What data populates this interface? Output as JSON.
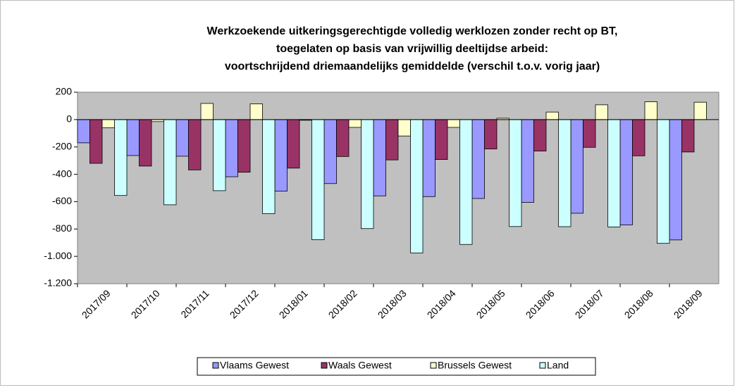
{
  "chart_data": {
    "type": "bar",
    "title": [
      "Werkzoekende uitkeringsgerechtigde volledig werklozen zonder recht op BT,",
      "toegelaten op basis van vrijwillig deeltijdse arbeid:",
      "voortschrijdend driemaandelijks gemiddelde (verschil t.o.v. vorig jaar)"
    ],
    "categories": [
      "2017/09",
      "2017/10",
      "2017/11",
      "2017/12",
      "2018/01",
      "2018/02",
      "2018/03",
      "2018/04",
      "2018/05",
      "2018/06",
      "2018/07",
      "2018/08",
      "2018/09"
    ],
    "series": [
      {
        "name": "Vlaams Gewest",
        "color": "#9999ff",
        "values": [
          -170,
          -263,
          -268,
          -418,
          -523,
          -468,
          -558,
          -563,
          -577,
          -605,
          -685,
          -770,
          -880
        ]
      },
      {
        "name": "Waals Gewest",
        "color": "#993366",
        "values": [
          -320,
          -340,
          -368,
          -385,
          -355,
          -270,
          -295,
          -292,
          -215,
          -230,
          -203,
          -265,
          -237
        ]
      },
      {
        "name": "Brussels Gewest",
        "color": "#ffffcc",
        "values": [
          -60,
          -15,
          118,
          115,
          -5,
          -57,
          -120,
          -57,
          10,
          55,
          108,
          130,
          127
        ]
      },
      {
        "name": "Land",
        "color": "#ccffff",
        "values": [
          -555,
          -623,
          -520,
          -688,
          -878,
          -797,
          -975,
          -913,
          -782,
          -783,
          -785,
          -905,
          null
        ]
      }
    ],
    "ylim": [
      -1200,
      200
    ],
    "yticks": [
      {
        "value": -1200,
        "label": "-1.200"
      },
      {
        "value": -1000,
        "label": "-1.000"
      },
      -800,
      -600,
      -400,
      -200,
      0,
      200
    ],
    "plot_background": "#c0c0c0"
  }
}
